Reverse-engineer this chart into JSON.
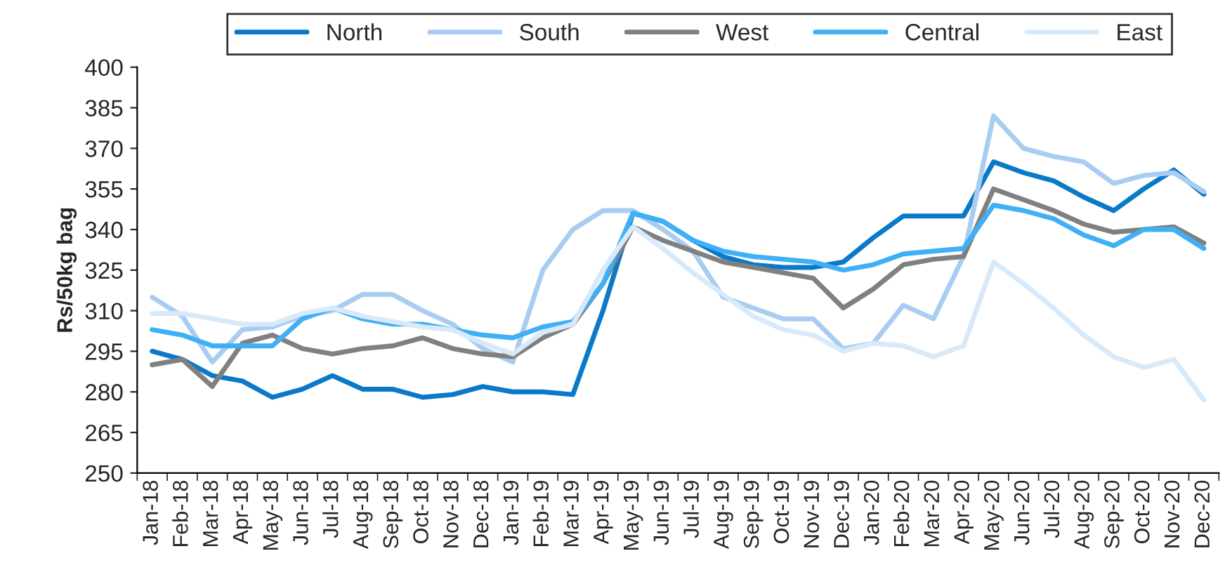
{
  "chart_data": {
    "type": "line",
    "ylabel": "Rs/50kg bag",
    "categories": [
      "Jan-18",
      "Feb-18",
      "Mar-18",
      "Apr-18",
      "May-18",
      "Jun-18",
      "Jul-18",
      "Aug-18",
      "Sep-18",
      "Oct-18",
      "Nov-18",
      "Dec-18",
      "Jan-19",
      "Feb-19",
      "Mar-19",
      "Apr-19",
      "May-19",
      "Jun-19",
      "Jul-19",
      "Aug-19",
      "Sep-19",
      "Oct-19",
      "Nov-19",
      "Dec-19",
      "Jan-20",
      "Feb-20",
      "Mar-20",
      "Apr-20",
      "May-20",
      "Jun-20",
      "Jul-20",
      "Aug-20",
      "Sep-20",
      "Oct-20",
      "Nov-20",
      "Dec-20"
    ],
    "series": [
      {
        "name": "North",
        "color": "#0a7ac8",
        "values": [
          295,
          292,
          286,
          284,
          278,
          281,
          286,
          281,
          281,
          278,
          279,
          282,
          280,
          280,
          279,
          310,
          346,
          343,
          336,
          330,
          327,
          326,
          326,
          328,
          337,
          345,
          345,
          345,
          365,
          361,
          358,
          352,
          347,
          355,
          362,
          353
        ]
      },
      {
        "name": "South",
        "color": "#a9cdf2",
        "values": [
          315,
          308,
          291,
          303,
          304,
          308,
          310,
          316,
          316,
          310,
          305,
          296,
          291,
          325,
          340,
          347,
          347,
          340,
          332,
          315,
          311,
          307,
          307,
          296,
          298,
          312,
          307,
          330,
          382,
          370,
          367,
          365,
          357,
          360,
          361,
          354
        ]
      },
      {
        "name": "West",
        "color": "#808080",
        "values": [
          290,
          292,
          282,
          298,
          301,
          296,
          294,
          296,
          297,
          300,
          296,
          294,
          293,
          300,
          305,
          320,
          341,
          336,
          332,
          328,
          326,
          324,
          322,
          311,
          318,
          327,
          329,
          330,
          355,
          351,
          347,
          342,
          339,
          340,
          341,
          335
        ]
      },
      {
        "name": "Central",
        "color": "#3fb0f5",
        "values": [
          303,
          301,
          297,
          297,
          297,
          307,
          311,
          307,
          305,
          305,
          303,
          301,
          300,
          304,
          306,
          320,
          346,
          343,
          336,
          332,
          330,
          329,
          328,
          325,
          327,
          331,
          332,
          333,
          349,
          347,
          344,
          338,
          334,
          340,
          340,
          333
        ]
      },
      {
        "name": "East",
        "color": "#d8e9f9",
        "values": [
          309,
          309,
          307,
          305,
          305,
          309,
          311,
          308,
          306,
          304,
          303,
          298,
          294,
          302,
          305,
          325,
          341,
          333,
          324,
          316,
          308,
          303,
          301,
          295,
          298,
          297,
          293,
          297,
          328,
          320,
          311,
          301,
          293,
          289,
          292,
          277
        ]
      }
    ],
    "ylim": [
      250,
      400
    ],
    "yticks": [
      250,
      265,
      280,
      295,
      310,
      325,
      340,
      355,
      370,
      385,
      400
    ],
    "grid": false,
    "legend": "top",
    "marker": "none",
    "line_style": "solid"
  }
}
